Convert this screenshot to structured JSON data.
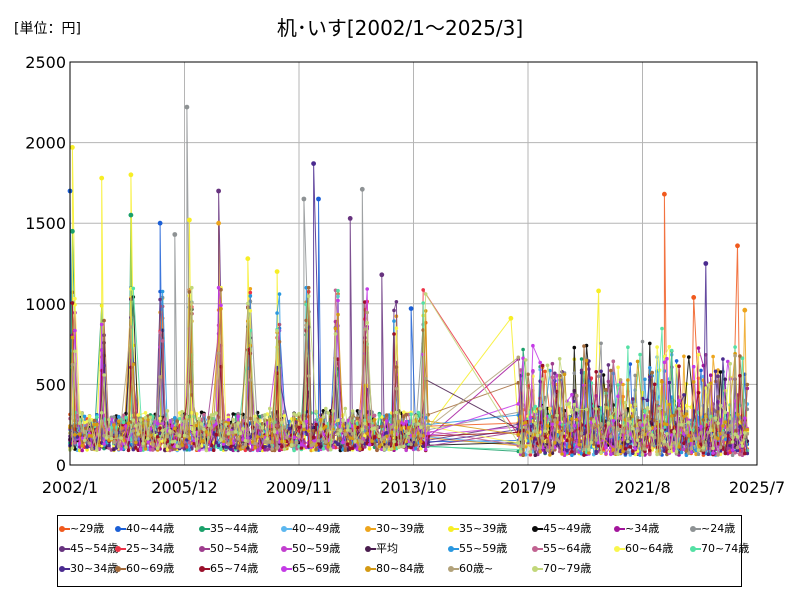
{
  "chart_data": {
    "type": "line",
    "title": "机･いす[2002/1～2025/3]",
    "unit_label": "[単位：円]",
    "ylim": [
      0,
      2500
    ],
    "yticks": [
      0,
      500,
      1000,
      1500,
      2000,
      2500
    ],
    "xlim": [
      "2002/1",
      "2025/7"
    ],
    "xticks": [
      "2002/1",
      "2005/12",
      "2009/11",
      "2013/10",
      "2017/9",
      "2021/8",
      "2025/7"
    ],
    "grid": true,
    "legend_position": "bottom",
    "series": [
      {
        "name": "~29歳",
        "color": "#f05a1e"
      },
      {
        "name": "40~44歳",
        "color": "#1b5fd6"
      },
      {
        "name": "35~44歳",
        "color": "#1aa06a"
      },
      {
        "name": "40~49歳",
        "color": "#5cb7ef"
      },
      {
        "name": "30~39歳",
        "color": "#eda51d"
      },
      {
        "name": "35~39歳",
        "color": "#f7ee26"
      },
      {
        "name": "45~49歳",
        "color": "#0a0a0a"
      },
      {
        "name": "~34歳",
        "color": "#a3159c"
      },
      {
        "name": "~24歳",
        "color": "#8e9294"
      },
      {
        "name": "45~54歳",
        "color": "#67337f"
      },
      {
        "name": "25~34歳",
        "color": "#ec3347"
      },
      {
        "name": "50~54歳",
        "color": "#9e3d8e"
      },
      {
        "name": "50~59歳",
        "color": "#c23fcf"
      },
      {
        "name": "平均",
        "color": "#4a1d4e"
      },
      {
        "name": "55~59歳",
        "color": "#2a98e0"
      },
      {
        "name": "55~64歳",
        "color": "#c16391"
      },
      {
        "name": "60~64歳",
        "color": "#f9f64d"
      },
      {
        "name": "70~74歳",
        "color": "#54e0a4"
      },
      {
        "name": "30~34歳",
        "color": "#4a2a8f"
      },
      {
        "name": "60~69歳",
        "color": "#a36a3a"
      },
      {
        "name": "65~74歳",
        "color": "#9a0f2a"
      },
      {
        "name": "65~69歳",
        "color": "#c43be6"
      },
      {
        "name": "80~84歳",
        "color": "#d49a14"
      },
      {
        "name": "60歳~",
        "color": "#b2a27a"
      },
      {
        "name": "70~79歳",
        "color": "#c2d77a"
      }
    ],
    "peaks": [
      {
        "series": "35~39歳",
        "x": "2002/2",
        "value": 1970
      },
      {
        "series": "40~44歳",
        "x": "2002/1",
        "value": 1700
      },
      {
        "series": "35~44歳",
        "x": "2002/2",
        "value": 1450
      },
      {
        "series": "35~39歳",
        "x": "2003/2",
        "value": 1780
      },
      {
        "series": "35~39歳",
        "x": "2004/2",
        "value": 1800
      },
      {
        "series": "35~44歳",
        "x": "2004/2",
        "value": 1550
      },
      {
        "series": "40~44歳",
        "x": "2005/2",
        "value": 1500
      },
      {
        "series": "~24歳",
        "x": "2005/8",
        "value": 1430
      },
      {
        "series": "~24歳",
        "x": "2006/1",
        "value": 2220
      },
      {
        "series": "35~39歳",
        "x": "2006/2",
        "value": 1520
      },
      {
        "series": "45~54歳",
        "x": "2007/2",
        "value": 1700
      },
      {
        "series": "30~39歳",
        "x": "2007/2",
        "value": 1500
      },
      {
        "series": "35~39歳",
        "x": "2008/2",
        "value": 1280
      },
      {
        "series": "35~39歳",
        "x": "2009/2",
        "value": 1200
      },
      {
        "series": "~24歳",
        "x": "2010/1",
        "value": 1650
      },
      {
        "series": "30~34歳",
        "x": "2010/5",
        "value": 1870
      },
      {
        "series": "40~44歳",
        "x": "2010/7",
        "value": 1650
      },
      {
        "series": "~24歳",
        "x": "2012/1",
        "value": 1710
      },
      {
        "series": "45~54歳",
        "x": "2011/8",
        "value": 1530
      },
      {
        "series": "45~54歳",
        "x": "2012/9",
        "value": 1180
      },
      {
        "series": "40~44歳",
        "x": "2013/9",
        "value": 970
      },
      {
        "series": "35~39歳",
        "x": "2017/2",
        "value": 910
      },
      {
        "series": "35~39歳",
        "x": "2020/2",
        "value": 1080
      },
      {
        "series": "~29歳",
        "x": "2022/5",
        "value": 1680
      },
      {
        "series": "~29歳",
        "x": "2023/5",
        "value": 1040
      },
      {
        "series": "30~34歳",
        "x": "2023/10",
        "value": 1250
      },
      {
        "series": "~29歳",
        "x": "2024/11",
        "value": 1360
      },
      {
        "series": "30~39歳",
        "x": "2025/2",
        "value": 960
      }
    ]
  }
}
